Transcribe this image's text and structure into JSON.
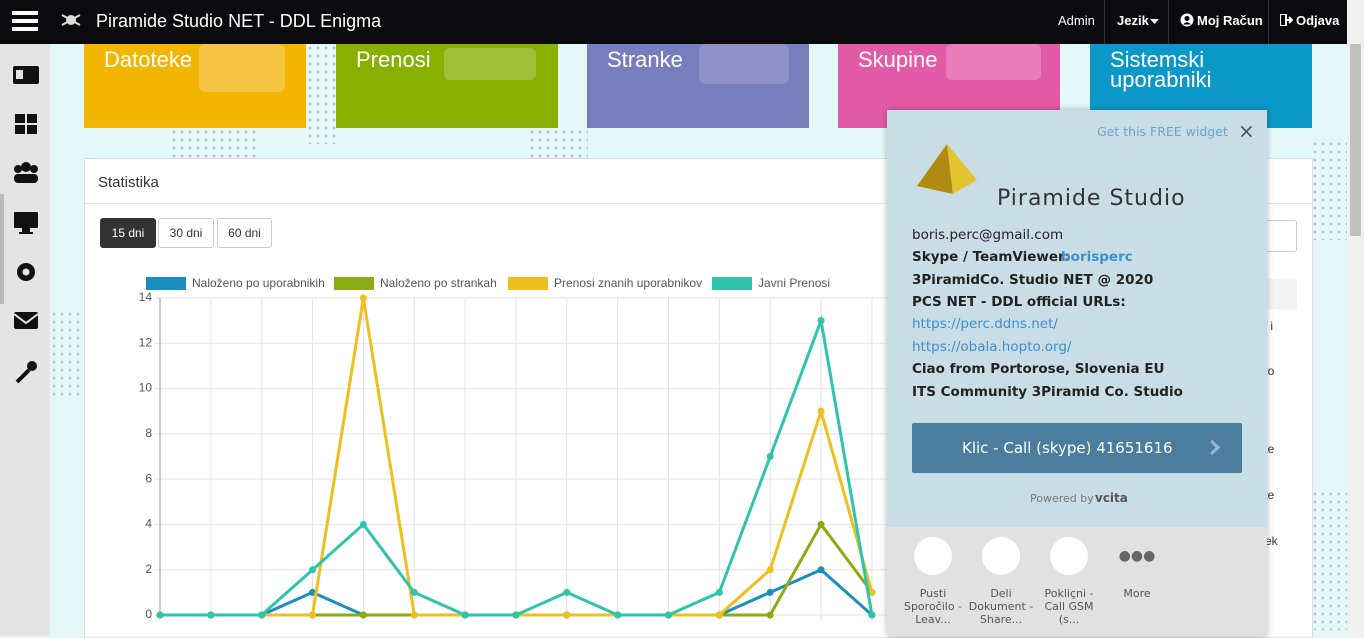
{
  "navbar": {
    "title": "Piramide Studio NET - DDL Enigma",
    "admin": "Admin",
    "language": "Jezik",
    "account": "Moj Račun",
    "logout": "Odjava"
  },
  "tiles": [
    "Datoteke",
    "Prenosi",
    "Stranke",
    "Skupine",
    "Sistemski uporabniki"
  ],
  "panel": {
    "title": "Statistika",
    "buttons": [
      "15 dni",
      "30 dni",
      "60 dni"
    ]
  },
  "background_text": [
    "dil i",
    "eko",
    "eke",
    "eke",
    "otek"
  ],
  "chart_data": {
    "type": "line",
    "categories": [
      null,
      null,
      null,
      null,
      null,
      null,
      null,
      null,
      null,
      null,
      null,
      null,
      null,
      null,
      null
    ],
    "series": [
      {
        "name": "Naloženo po uporabnikih",
        "color": "#1b8ec0",
        "values": [
          0,
          0,
          0,
          1,
          0,
          0,
          0,
          0,
          0,
          0,
          0,
          0,
          1,
          2,
          0
        ]
      },
      {
        "name": "Naloženo po strankah",
        "color": "#8aab12",
        "values": [
          0,
          0,
          0,
          0,
          0,
          0,
          0,
          0,
          0,
          0,
          0,
          0,
          0,
          4,
          1
        ]
      },
      {
        "name": "Prenosi znanih uporabnikov",
        "color": "#f0bf1e",
        "values": [
          0,
          0,
          0,
          0,
          14,
          0,
          0,
          0,
          0,
          0,
          0,
          0,
          2,
          9,
          1
        ]
      },
      {
        "name": "Javni Prenosi",
        "color": "#2ec4ae",
        "values": [
          0,
          0,
          0,
          2,
          4,
          1,
          0,
          0,
          1,
          0,
          0,
          1,
          7,
          13,
          0
        ]
      }
    ],
    "ylim": [
      0,
      14
    ],
    "yticks": [
      0,
      2,
      4,
      6,
      8,
      10,
      12,
      14
    ],
    "grid": true
  },
  "widget": {
    "get_widget": "Get this FREE widget",
    "close": "×",
    "name": "Piramide Studio",
    "email": "boris.perc@gmail.com",
    "skype_label": "Skype / TeamViewer:",
    "skype_id": "borisperc",
    "line1": "3PiramidCo. Studio NET @ 2020",
    "line2": "PCS NET - DDL official URLs:",
    "url1": "https://perc.ddns.net/",
    "url2": "https://obala.hopto.org/",
    "line3": "Ciao from Portorose, Slovenia EU",
    "line4": "ITS Community 3Piramid Co. Studio",
    "call_button": "Klic - Call (skype) 41651616",
    "powered_by": "Powered by",
    "powered_brand": "vcita",
    "actions": [
      "Pusti Sporočilo - Leav...",
      "Deli Dokument - Share...",
      "Pokliçni - Call GSM (s...",
      "More"
    ]
  }
}
